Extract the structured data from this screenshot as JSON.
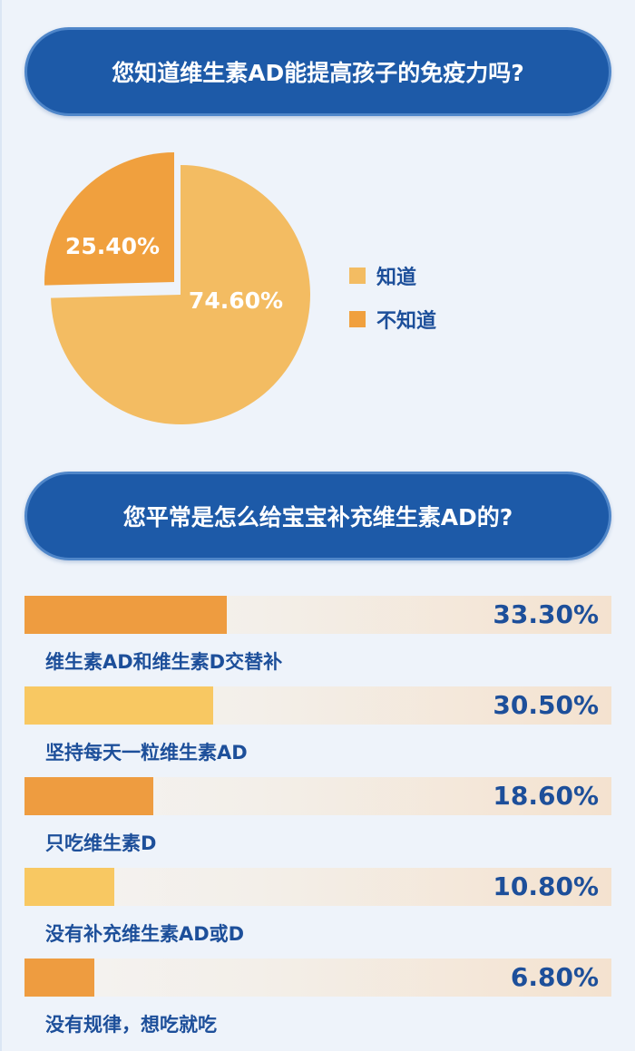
{
  "chart_data": [
    {
      "type": "pie",
      "title": "您知道维生素AD能提高孩子的免疫力吗?",
      "categories": [
        "知道",
        "不知道"
      ],
      "values": [
        74.6,
        25.4
      ],
      "labels": [
        "74.60%",
        "25.40%"
      ],
      "colors": [
        "#f3bc62",
        "#f0a03e"
      ],
      "legend": "right"
    },
    {
      "type": "bar",
      "orientation": "horizontal",
      "title": "您平常是怎么给宝宝补充维生素AD的?",
      "categories": [
        "维生素AD和维生素D交替补",
        "坚持每天一粒维生素AD",
        "只吃维生素D",
        "没有补充维生素AD或D",
        "没有规律，想吃就吃"
      ],
      "values": [
        33.3,
        30.5,
        18.6,
        10.8,
        6.8
      ],
      "labels": [
        "33.30%",
        "30.50%",
        "18.60%",
        "10.80%",
        "6.80%"
      ],
      "colors": [
        "#ee9c40",
        "#f8c862",
        "#ee9c40",
        "#f8c862",
        "#ee9c40"
      ]
    }
  ]
}
